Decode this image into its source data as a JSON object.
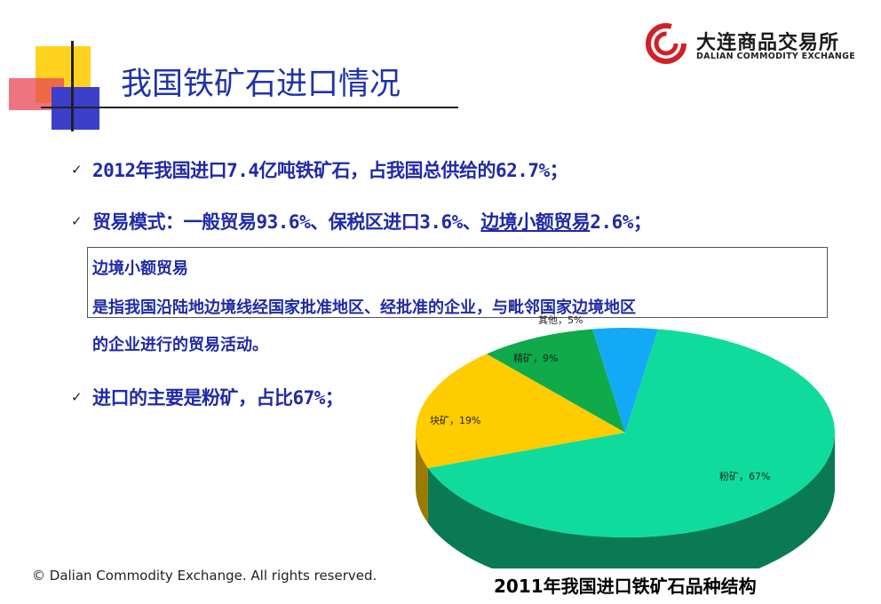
{
  "header": {
    "title": "我国铁矿石进口情况",
    "logo_cn": "大连商品交易所",
    "logo_en": "DALIAN  COMMODITY  EXCHANGE"
  },
  "bullets": {
    "b1": "2012年我国进口7.4亿吨铁矿石，占我国总供给的62.7%；",
    "b2_prefix": "贸易模式：一般贸易93.6%、保税区进口3.6%、",
    "b2_link": "边境小额贸易",
    "b2_suffix": "2.6%；",
    "b3": "进口的主要是粉矿，占比67%；"
  },
  "definition": {
    "title": "边境小额贸易",
    "line1": "是指我国沿陆地边境线经国家批准地区、经批准的企业，与毗邻国家边境地区",
    "line2": "的企业进行的贸易活动。"
  },
  "footer": {
    "copyright": "© Dalian Commodity Exchange. All rights reserved.",
    "caption": "2011年我国进口铁矿石品种结构"
  },
  "chart_data": {
    "type": "pie",
    "title": "2011年我国进口铁矿石品种结构",
    "slices": [
      {
        "name": "粉矿",
        "value": 67,
        "label": "粉矿，67%",
        "color": "#0fdc9c",
        "side": "#0a7a55"
      },
      {
        "name": "块矿",
        "value": 19,
        "label": "块矿，19%",
        "color": "#ffcc00",
        "side": "#9a7b00"
      },
      {
        "name": "精矿",
        "value": 9,
        "label": "精矿，9%",
        "color": "#0faa4a",
        "side": "#0a6e30"
      },
      {
        "name": "其他",
        "value": 5,
        "label": "其他，5%",
        "color": "#13aaf5",
        "side": "#0a6a9a"
      }
    ],
    "style": "3d-pie"
  }
}
